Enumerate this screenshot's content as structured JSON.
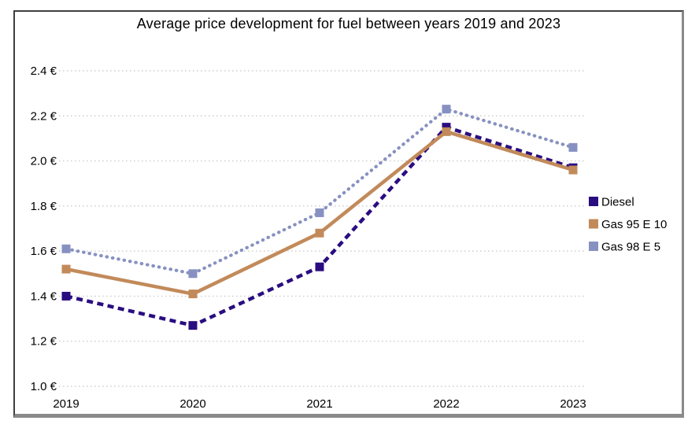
{
  "chart_data": {
    "type": "line",
    "title": "Average price development for fuel between years 2019 and 2023",
    "categories": [
      "2019",
      "2020",
      "2021",
      "2022",
      "2023"
    ],
    "series": [
      {
        "name": "Diesel",
        "values": [
          1.4,
          1.27,
          1.53,
          2.15,
          1.97
        ],
        "color": "#2a0d80",
        "line_style": "dashed",
        "marker": "square"
      },
      {
        "name": "Gas 95 E 10",
        "values": [
          1.52,
          1.41,
          1.68,
          2.13,
          1.96
        ],
        "color": "#c28a5a",
        "line_style": "solid",
        "marker": "square"
      },
      {
        "name": "Gas 98 E 5",
        "values": [
          1.61,
          1.5,
          1.77,
          2.23,
          2.06
        ],
        "color": "#8791c1",
        "line_style": "dotted",
        "marker": "square"
      }
    ],
    "xlabel": "",
    "ylabel": "",
    "y_ticks": [
      "2.4 €",
      "2.2 €",
      "2.0 €",
      "1.8 €",
      "1.6 €",
      "1.4 €",
      "1.2 €",
      "1.0 €"
    ],
    "y_tick_values": [
      2.4,
      2.2,
      2.0,
      1.8,
      1.6,
      1.4,
      1.2,
      1.0
    ],
    "ylim": [
      1.0,
      2.4
    ],
    "grid": "horizontal-dotted",
    "legend_position": "right",
    "currency_suffix": " €"
  },
  "colors": {
    "grid": "#c8c8c8",
    "frame_border": "#3f3f3f",
    "frame_shadow": "#8a8a8a",
    "background": "#ffffff",
    "text": "#000000"
  }
}
